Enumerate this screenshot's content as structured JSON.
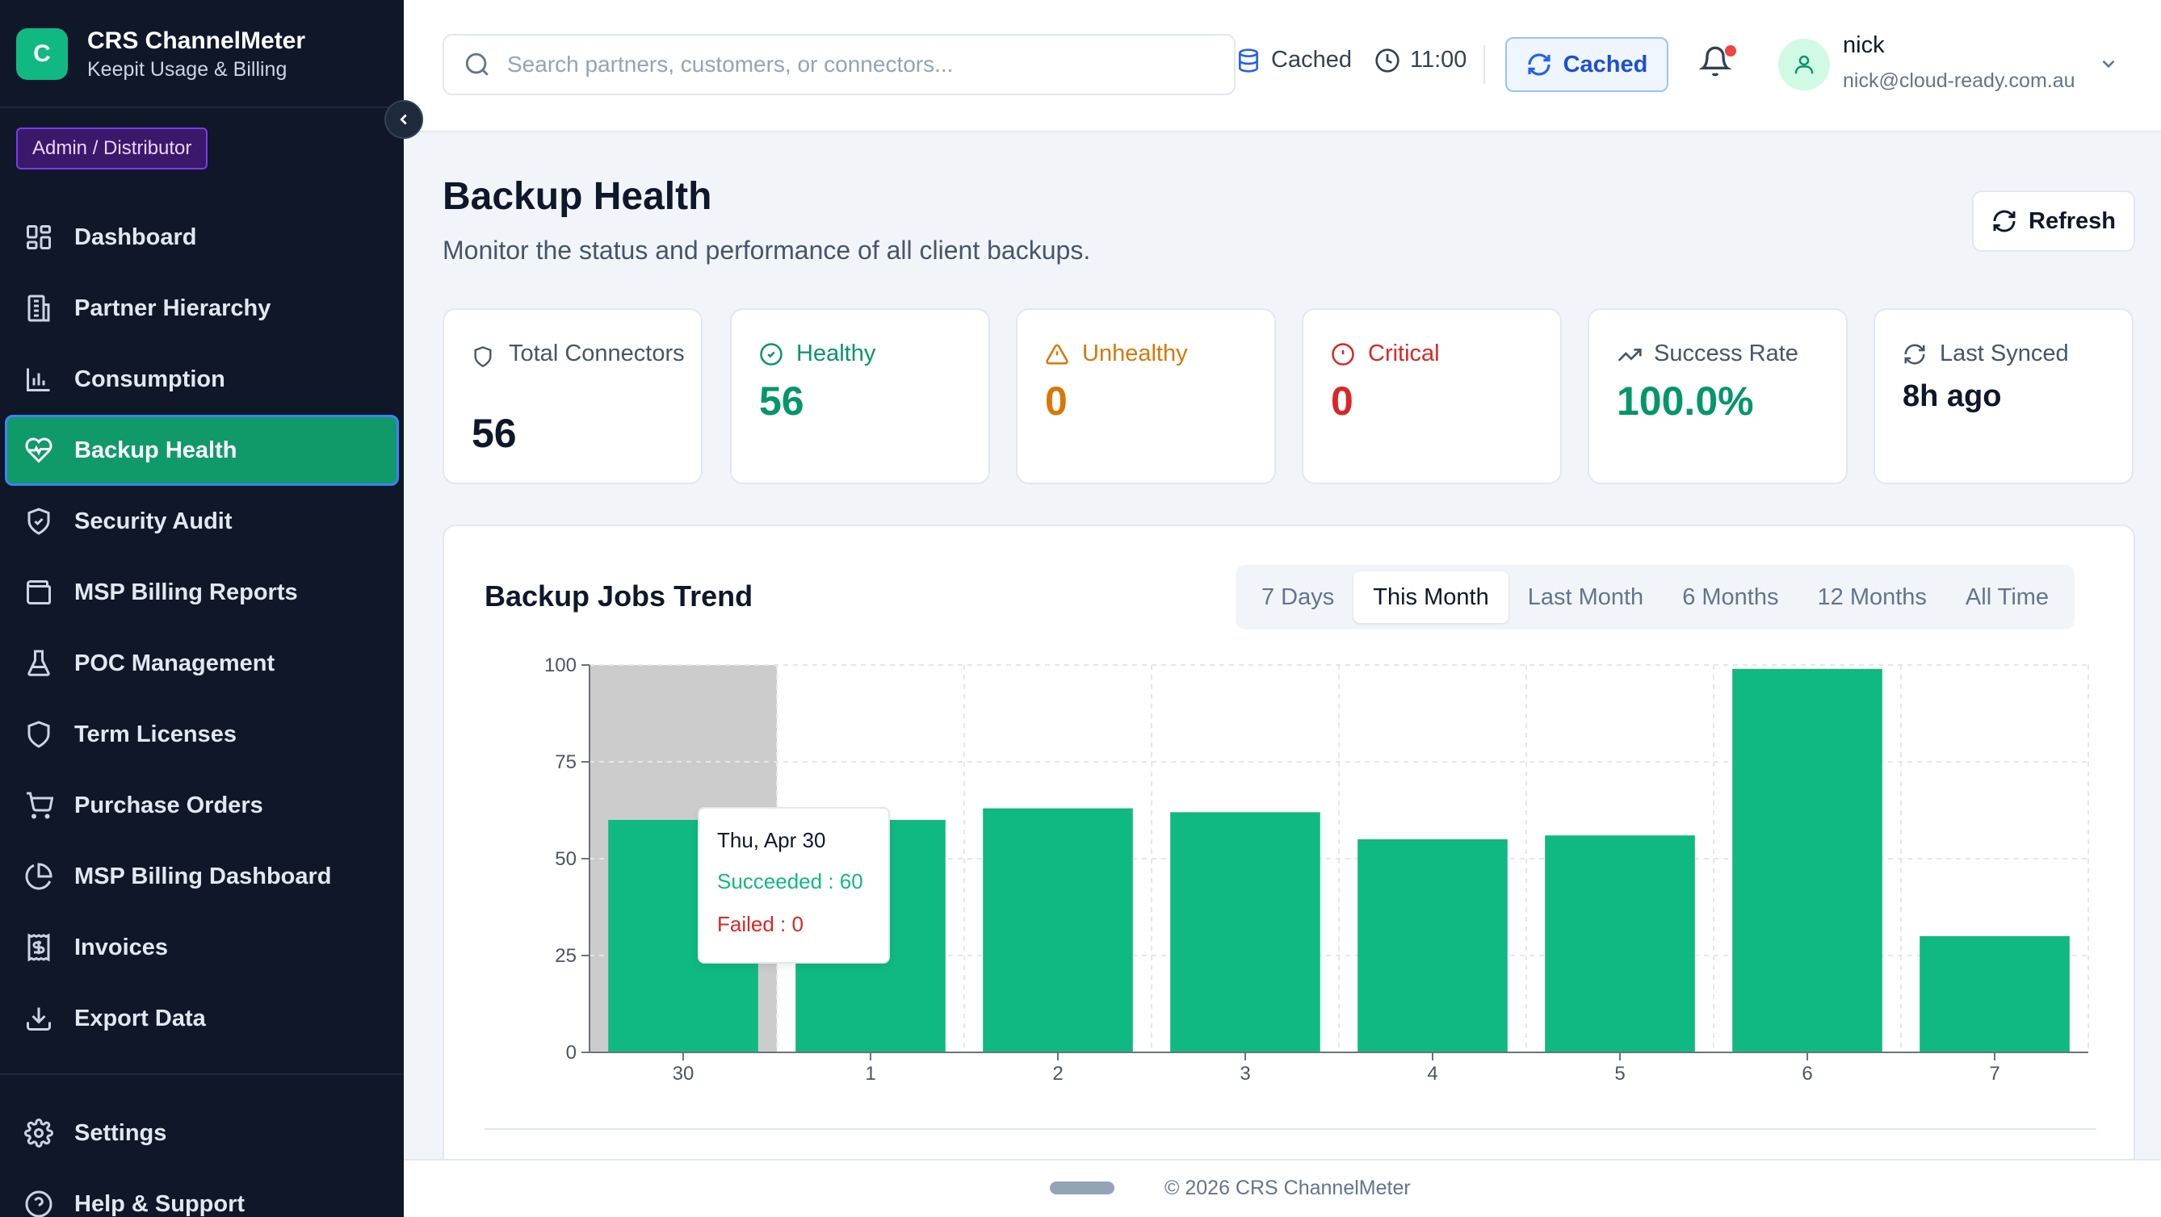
{
  "brand": {
    "logo_letter": "C",
    "title": "CRS ChannelMeter",
    "subtitle": "Keepit Usage & Billing"
  },
  "role_badge": "Admin / Distributor",
  "sidebar": {
    "items": [
      {
        "label": "Dashboard",
        "icon": "dashboard-icon"
      },
      {
        "label": "Partner Hierarchy",
        "icon": "building-icon"
      },
      {
        "label": "Consumption",
        "icon": "bar-chart-icon"
      },
      {
        "label": "Backup Health",
        "icon": "heart-pulse-icon",
        "active": true
      },
      {
        "label": "Security Audit",
        "icon": "shield-check-icon"
      },
      {
        "label": "MSP Billing Reports",
        "icon": "wallet-icon"
      },
      {
        "label": "POC Management",
        "icon": "flask-icon"
      },
      {
        "label": "Term Licenses",
        "icon": "shield-icon"
      },
      {
        "label": "Purchase Orders",
        "icon": "cart-icon"
      },
      {
        "label": "MSP Billing Dashboard",
        "icon": "pie-chart-icon"
      },
      {
        "label": "Invoices",
        "icon": "receipt-icon"
      },
      {
        "label": "Export Data",
        "icon": "download-icon"
      }
    ],
    "bottom": [
      {
        "label": "Settings",
        "icon": "gear-icon"
      },
      {
        "label": "Help & Support",
        "icon": "help-icon"
      }
    ]
  },
  "header": {
    "search_placeholder": "Search partners, customers, or connectors...",
    "cache_status": "Cached",
    "time": "11:00",
    "cached_button": "Cached",
    "user": {
      "name": "nick",
      "email": "nick@cloud-ready.com.au"
    }
  },
  "page": {
    "title": "Backup Health",
    "subtitle": "Monitor the status and performance of all client backups.",
    "refresh_label": "Refresh"
  },
  "stats": {
    "total": {
      "label": "Total Connectors",
      "value": "56"
    },
    "healthy": {
      "label": "Healthy",
      "value": "56"
    },
    "unhealthy": {
      "label": "Unhealthy",
      "value": "0"
    },
    "critical": {
      "label": "Critical",
      "value": "0"
    },
    "success_rate": {
      "label": "Success Rate",
      "value": "100.0%"
    },
    "last_synced": {
      "label": "Last Synced",
      "value": "8h ago"
    }
  },
  "colors": {
    "accent": "#10b981",
    "warning": "#d97706",
    "critical": "#dc2626",
    "sidebar_bg": "#0f1729",
    "active_nav": "#109a6a"
  },
  "trend": {
    "title": "Backup Jobs Trend",
    "ranges": [
      "7 Days",
      "This Month",
      "Last Month",
      "6 Months",
      "12 Months",
      "All Time"
    ],
    "active_range": "This Month",
    "tooltip": {
      "date": "Thu, Apr 30",
      "succeeded": "Succeeded : 60",
      "failed": "Failed : 0"
    }
  },
  "chart_data": {
    "type": "bar",
    "categories": [
      "30",
      "1",
      "2",
      "3",
      "4",
      "5",
      "6",
      "7"
    ],
    "series": [
      {
        "values": [
          60,
          60,
          63,
          62,
          55,
          56,
          99,
          30
        ],
        "color": "#10b981"
      }
    ],
    "ylim": [
      0,
      100
    ],
    "yticks": [
      0,
      25,
      50,
      75,
      100
    ],
    "grid": true,
    "highlighted_category": "30"
  },
  "footer": {
    "text": "© 2026 CRS ChannelMeter"
  }
}
